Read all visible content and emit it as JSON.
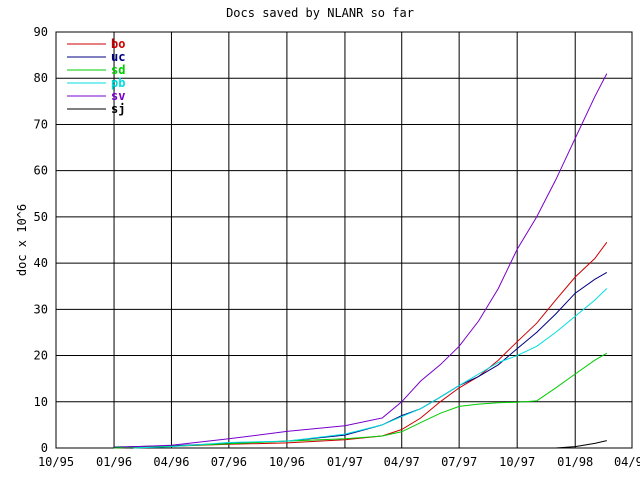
{
  "chart_data": {
    "type": "line",
    "title": "Docs saved by NLANR so far",
    "xlabel": "",
    "ylabel": "doc x 10^6",
    "xlim": [
      "1995-10-01",
      "1998-04-01"
    ],
    "ylim": [
      0,
      90
    ],
    "yticks": [
      0,
      10,
      20,
      30,
      40,
      50,
      60,
      70,
      80,
      90
    ],
    "xticks": [
      {
        "date": "1995-10-01",
        "label": "10/95"
      },
      {
        "date": "1996-01-01",
        "label": "01/96"
      },
      {
        "date": "1996-04-01",
        "label": "04/96"
      },
      {
        "date": "1996-07-01",
        "label": "07/96"
      },
      {
        "date": "1996-10-01",
        "label": "10/96"
      },
      {
        "date": "1997-01-01",
        "label": "01/97"
      },
      {
        "date": "1997-04-01",
        "label": "04/97"
      },
      {
        "date": "1997-07-01",
        "label": "07/97"
      },
      {
        "date": "1997-10-01",
        "label": "10/97"
      },
      {
        "date": "1998-01-01",
        "label": "01/98"
      },
      {
        "date": "1998-04-01",
        "label": "04/98"
      }
    ],
    "grid": true,
    "legend_position": "top-left",
    "series": [
      {
        "name": "bo",
        "color": "#cc0000",
        "points": [
          [
            "1996-01-01",
            0
          ],
          [
            "1996-04-01",
            0.4
          ],
          [
            "1996-07-01",
            0.8
          ],
          [
            "1996-10-01",
            1.1
          ],
          [
            "1997-01-01",
            1.8
          ],
          [
            "1997-03-01",
            2.6
          ],
          [
            "1997-04-01",
            4
          ],
          [
            "1997-05-01",
            6.5
          ],
          [
            "1997-06-01",
            10
          ],
          [
            "1997-07-01",
            13
          ],
          [
            "1997-08-01",
            15.5
          ],
          [
            "1997-09-01",
            19
          ],
          [
            "1997-10-01",
            23
          ],
          [
            "1997-11-01",
            27
          ],
          [
            "1997-12-01",
            32
          ],
          [
            "1998-01-01",
            37
          ],
          [
            "1998-02-01",
            41
          ],
          [
            "1998-02-20",
            44.5
          ]
        ]
      },
      {
        "name": "uc",
        "color": "#000080",
        "points": [
          [
            "1996-01-01",
            0.2
          ],
          [
            "1996-04-01",
            0.5
          ],
          [
            "1996-07-01",
            1.0
          ],
          [
            "1996-10-01",
            1.5
          ],
          [
            "1997-01-01",
            2.8
          ],
          [
            "1997-03-01",
            5
          ],
          [
            "1997-04-01",
            7
          ],
          [
            "1997-05-01",
            8.5
          ],
          [
            "1997-06-01",
            11
          ],
          [
            "1997-07-01",
            13.5
          ],
          [
            "1997-08-01",
            15.5
          ],
          [
            "1997-09-01",
            18
          ],
          [
            "1997-10-01",
            21.5
          ],
          [
            "1997-11-01",
            25
          ],
          [
            "1997-12-01",
            29
          ],
          [
            "1998-01-01",
            33.5
          ],
          [
            "1998-02-01",
            36.5
          ],
          [
            "1998-02-20",
            38
          ]
        ]
      },
      {
        "name": "sd",
        "color": "#00cc00",
        "points": [
          [
            "1996-01-01",
            0
          ],
          [
            "1996-04-01",
            0.4
          ],
          [
            "1996-07-01",
            0.9
          ],
          [
            "1996-10-01",
            1.5
          ],
          [
            "1997-01-01",
            2
          ],
          [
            "1997-02-01",
            2.3
          ],
          [
            "1997-03-01",
            2.6
          ],
          [
            "1997-04-01",
            3.5
          ],
          [
            "1997-05-01",
            5.5
          ],
          [
            "1997-06-01",
            7.5
          ],
          [
            "1997-07-01",
            9
          ],
          [
            "1997-08-01",
            9.5
          ],
          [
            "1997-09-01",
            9.8
          ],
          [
            "1997-10-01",
            9.9
          ],
          [
            "1997-11-01",
            10.2
          ],
          [
            "1997-12-01",
            13
          ],
          [
            "1998-01-01",
            16
          ],
          [
            "1998-02-01",
            19
          ],
          [
            "1998-02-20",
            20.5
          ]
        ]
      },
      {
        "name": "pb",
        "color": "#00dddd",
        "points": [
          [
            "1996-02-01",
            0
          ],
          [
            "1996-04-01",
            0.3
          ],
          [
            "1996-07-01",
            1.2
          ],
          [
            "1996-10-01",
            1.5
          ],
          [
            "1997-01-01",
            3
          ],
          [
            "1997-03-01",
            5
          ],
          [
            "1997-04-01",
            6.8
          ],
          [
            "1997-05-01",
            8.5
          ],
          [
            "1997-06-01",
            11
          ],
          [
            "1997-07-01",
            13.5
          ],
          [
            "1997-08-01",
            16
          ],
          [
            "1997-09-01",
            18.5
          ],
          [
            "1997-10-01",
            20
          ],
          [
            "1997-11-01",
            22
          ],
          [
            "1997-12-01",
            25
          ],
          [
            "1998-01-01",
            28.5
          ],
          [
            "1998-02-01",
            32
          ],
          [
            "1998-02-20",
            34.5
          ]
        ]
      },
      {
        "name": "sv",
        "color": "#7700cc",
        "points": [
          [
            "1996-01-15",
            0.2
          ],
          [
            "1996-04-01",
            0.6
          ],
          [
            "1996-07-01",
            2
          ],
          [
            "1996-10-01",
            3.6
          ],
          [
            "1997-01-01",
            4.8
          ],
          [
            "1997-03-01",
            6.5
          ],
          [
            "1997-04-01",
            10
          ],
          [
            "1997-05-01",
            14.5
          ],
          [
            "1997-06-01",
            18
          ],
          [
            "1997-07-01",
            22
          ],
          [
            "1997-08-01",
            27.5
          ],
          [
            "1997-09-01",
            34.5
          ],
          [
            "1997-10-01",
            43
          ],
          [
            "1997-11-01",
            50
          ],
          [
            "1997-12-01",
            58
          ],
          [
            "1998-01-01",
            67
          ],
          [
            "1998-02-01",
            76
          ],
          [
            "1998-02-20",
            81
          ]
        ]
      },
      {
        "name": "sj",
        "color": "#000000",
        "points": [
          [
            "1997-12-01",
            0
          ],
          [
            "1998-01-01",
            0.3
          ],
          [
            "1998-02-01",
            1.0
          ],
          [
            "1998-02-20",
            1.6
          ]
        ]
      }
    ]
  }
}
